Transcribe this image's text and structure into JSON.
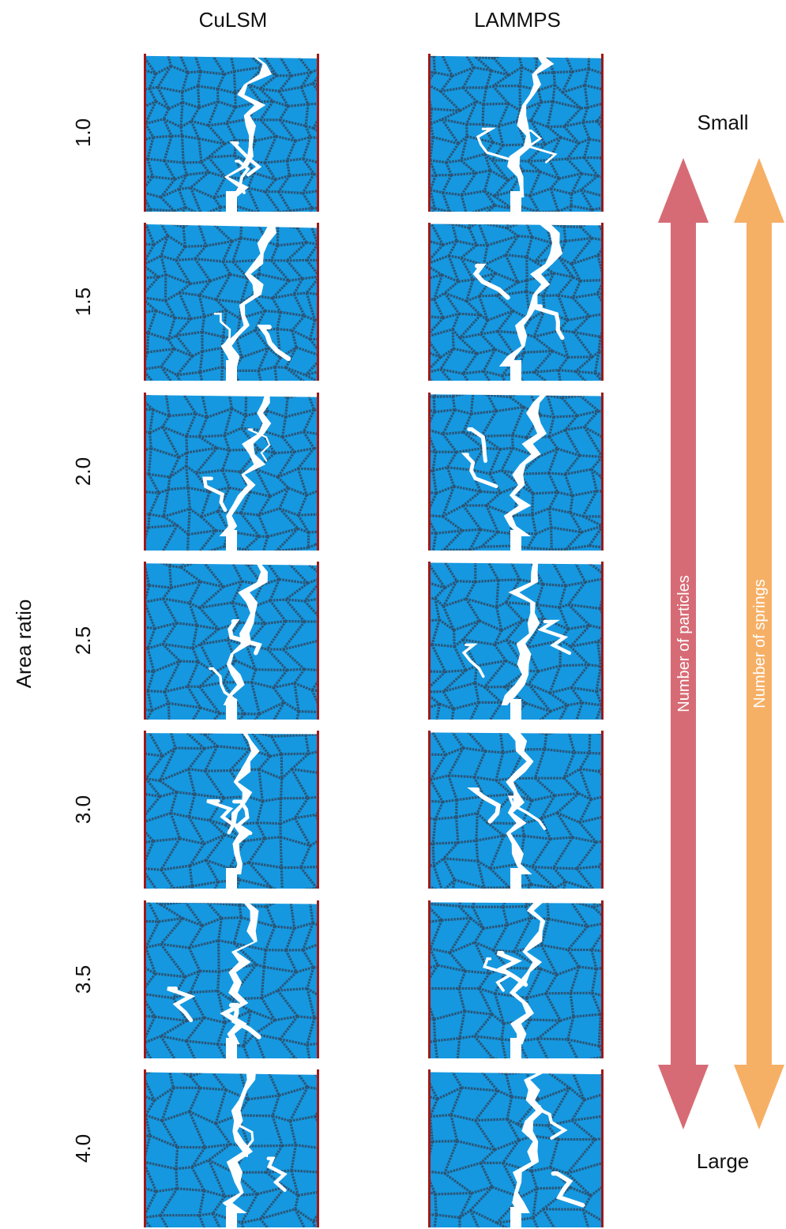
{
  "columns": [
    "CuLSM",
    "LAMMPS"
  ],
  "y_axis_label": "Area ratio",
  "rows": [
    "1.0",
    "1.5",
    "2.0",
    "2.5",
    "3.0",
    "3.5",
    "4.0"
  ],
  "arrow_top_label": "Small",
  "arrow_bottom_label": "Large",
  "arrows": [
    {
      "label": "Number of particles",
      "color": "#d76b75"
    },
    {
      "label": "Number of springs",
      "color": "#f6b066"
    }
  ],
  "colors": {
    "grain": "#1598e0",
    "boundary": "#2a5577",
    "crack": "#ffffff",
    "edge": "#a01818"
  }
}
